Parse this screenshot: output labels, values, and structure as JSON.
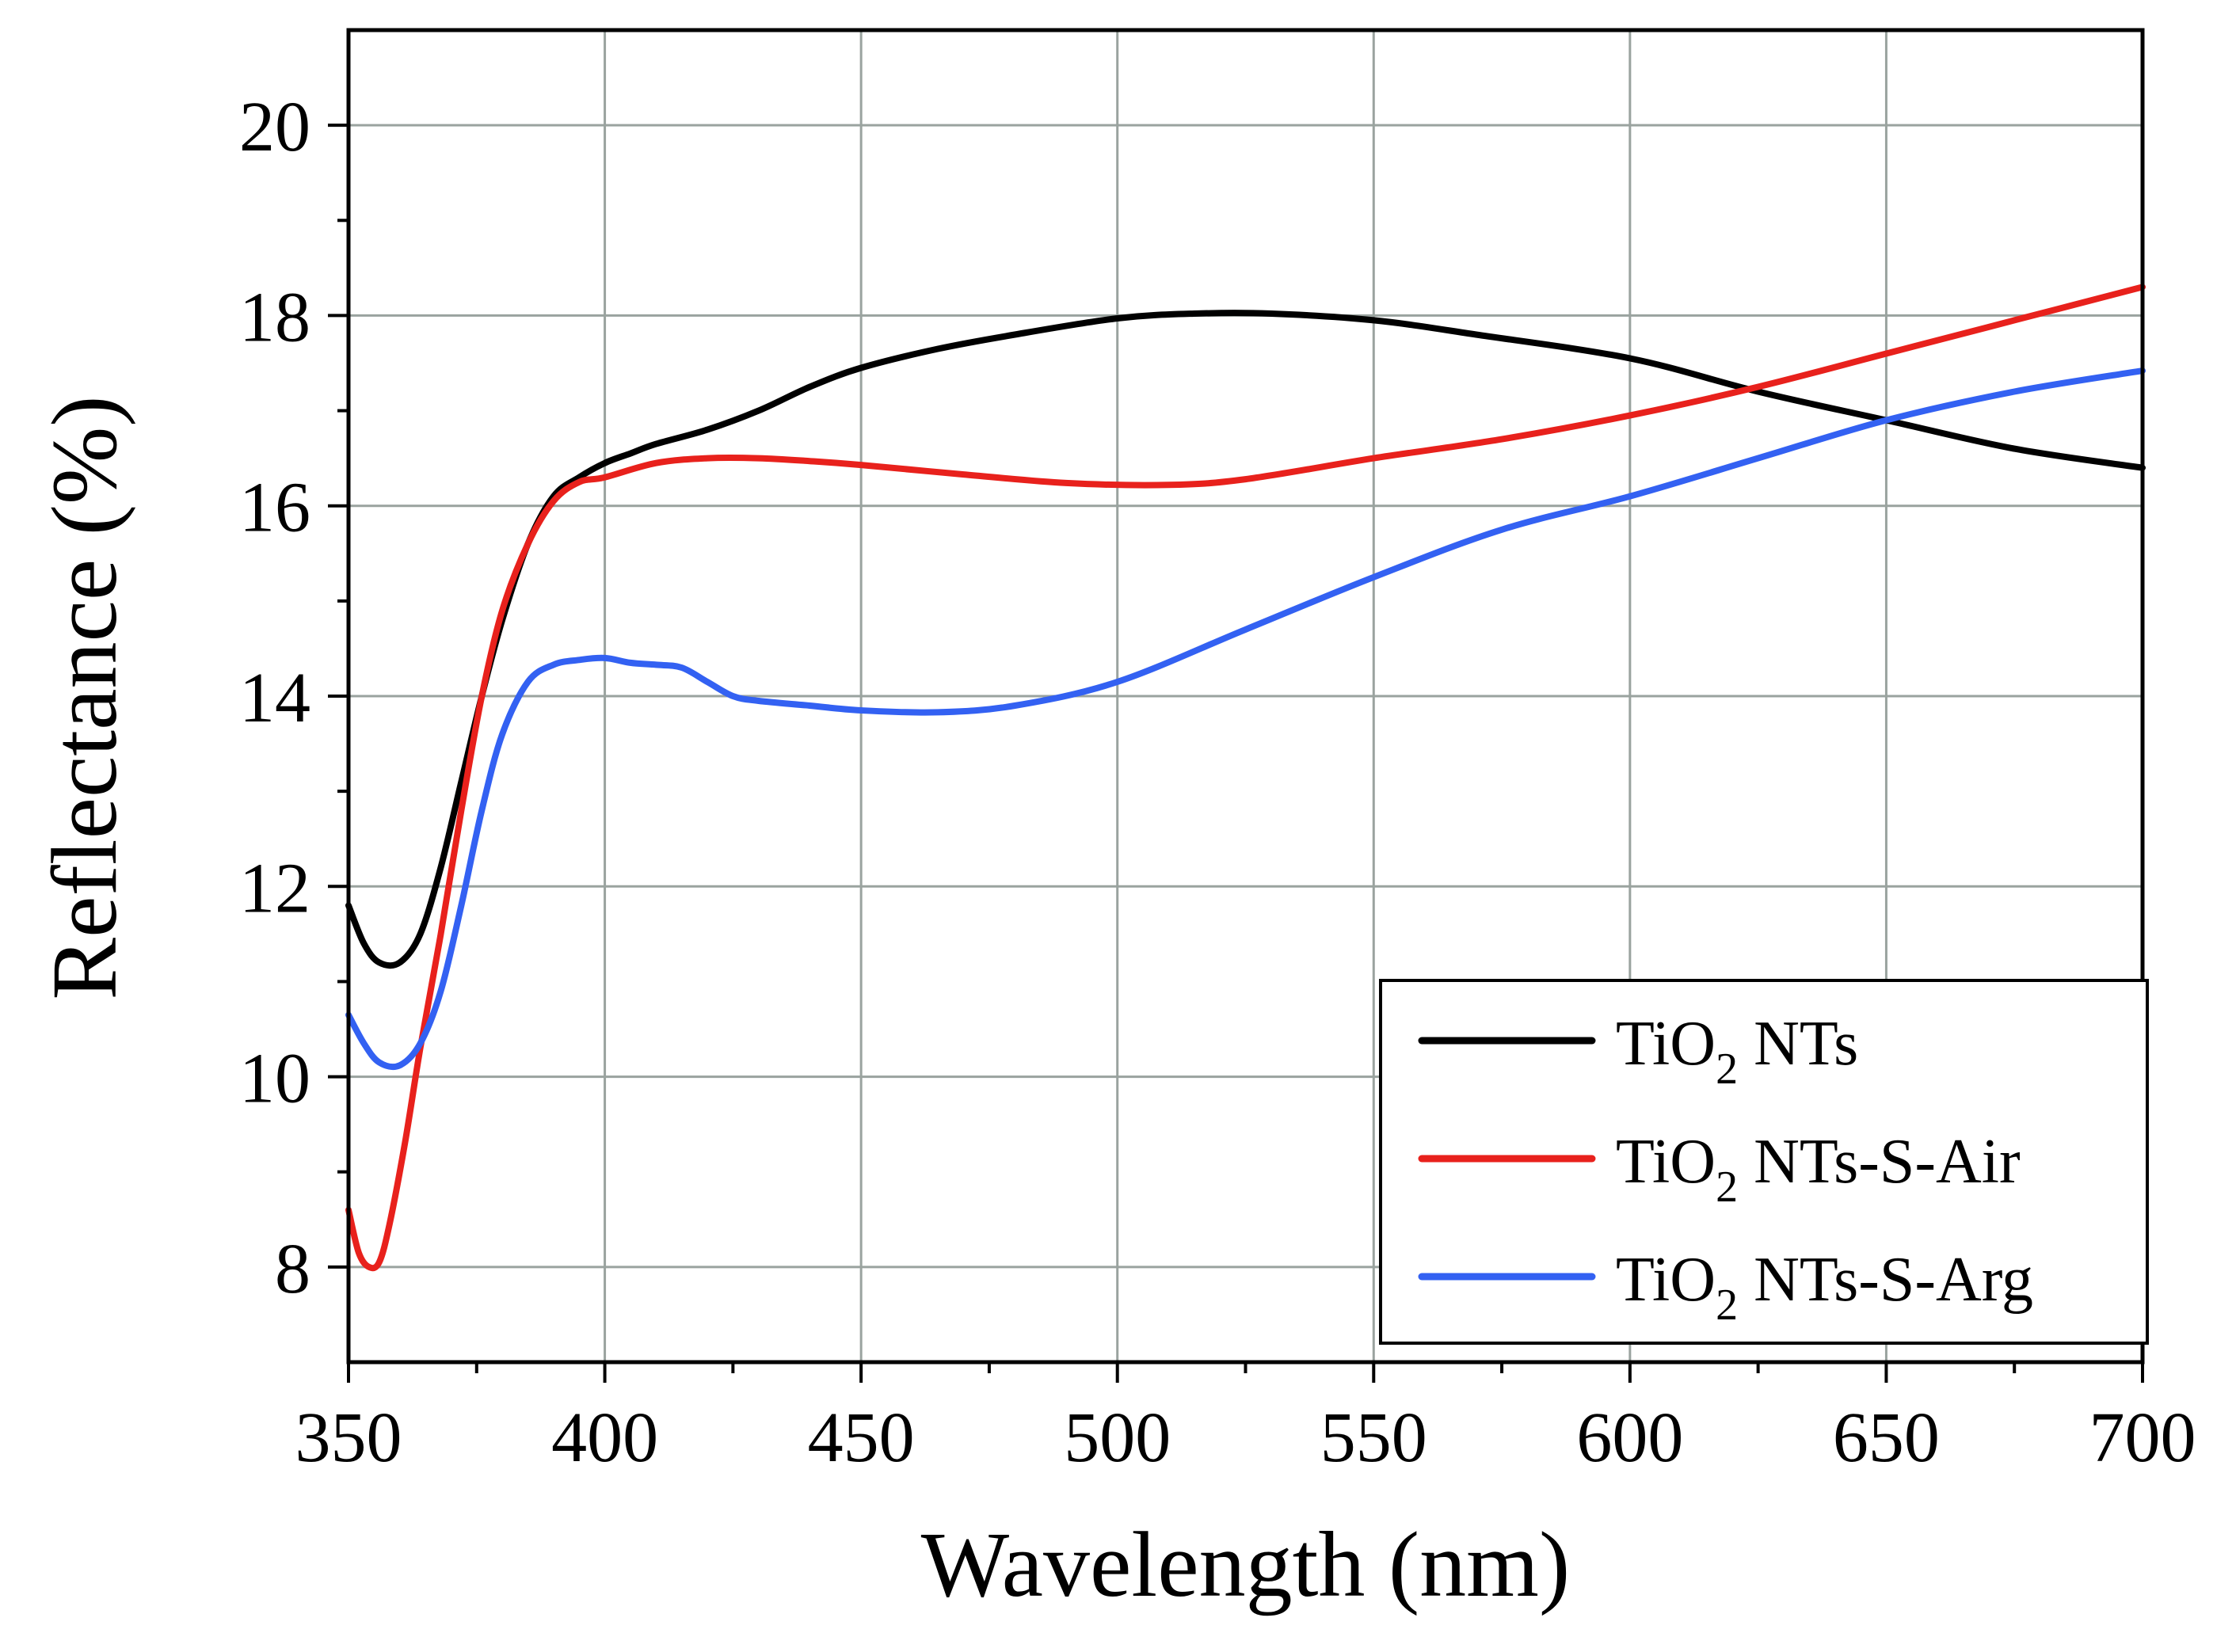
{
  "chart_data": {
    "type": "line",
    "title": "",
    "xlabel": "Wavelength (nm)",
    "ylabel": "Reflectance (%)",
    "xlim": [
      350,
      700
    ],
    "ylim": [
      7,
      21
    ],
    "x_ticks": [
      350,
      400,
      450,
      500,
      550,
      600,
      650,
      700
    ],
    "y_ticks": [
      8,
      10,
      12,
      14,
      16,
      18,
      20
    ],
    "x_ticks_labels": [
      "350",
      "400",
      "450",
      "500",
      "550",
      "600",
      "650",
      "700"
    ],
    "y_ticks_labels": [
      "8",
      "10",
      "12",
      "14",
      "16",
      "18",
      "20"
    ],
    "x_minor_step": 25,
    "y_minor_step": 1,
    "grid": true,
    "legend": {
      "position": "bottom-right",
      "items": [
        {
          "prefix": "TiO",
          "sub": "2",
          "suffix": " NTs"
        },
        {
          "prefix": "TiO",
          "sub": "2",
          "suffix": " NTs-S-Air"
        },
        {
          "prefix": "TiO",
          "sub": "2",
          "suffix": " NTs-S-Arg"
        }
      ]
    },
    "series": [
      {
        "name": "TiO2 NTs",
        "color": "#000000",
        "x": [
          350,
          353,
          356,
          360,
          364,
          368,
          372,
          376,
          380,
          385,
          390,
          395,
          400,
          405,
          410,
          420,
          430,
          440,
          450,
          465,
          480,
          500,
          515,
          530,
          550,
          570,
          600,
          625,
          650,
          675,
          700
        ],
        "y": [
          11.8,
          11.4,
          11.2,
          11.2,
          11.5,
          12.2,
          13.1,
          14.0,
          14.8,
          15.6,
          16.1,
          16.3,
          16.45,
          16.55,
          16.65,
          16.8,
          17.0,
          17.25,
          17.45,
          17.65,
          17.8,
          17.97,
          18.02,
          18.02,
          17.95,
          17.8,
          17.55,
          17.2,
          16.9,
          16.6,
          16.4
        ]
      },
      {
        "name": "TiO2 NTs-S-Air",
        "color": "#e8211c",
        "x": [
          350,
          352,
          354,
          356,
          358,
          361,
          364,
          368,
          372,
          376,
          380,
          385,
          390,
          395,
          400,
          410,
          420,
          430,
          440,
          450,
          470,
          490,
          510,
          525,
          550,
          575,
          600,
          625,
          650,
          675,
          700
        ],
        "y": [
          8.6,
          8.15,
          8.0,
          8.05,
          8.45,
          9.3,
          10.3,
          11.5,
          12.8,
          14.0,
          14.9,
          15.6,
          16.05,
          16.25,
          16.3,
          16.45,
          16.5,
          16.5,
          16.47,
          16.43,
          16.33,
          16.24,
          16.22,
          16.28,
          16.5,
          16.7,
          16.95,
          17.25,
          17.6,
          17.95,
          18.3
        ]
      },
      {
        "name": "TiO2 NTs-S-Arg",
        "color": "#3361f2",
        "x": [
          350,
          353,
          356,
          360,
          364,
          368,
          372,
          376,
          380,
          385,
          390,
          395,
          400,
          405,
          410,
          415,
          420,
          425,
          430,
          440,
          450,
          465,
          480,
          500,
          525,
          550,
          575,
          600,
          625,
          650,
          675,
          700
        ],
        "y": [
          10.65,
          10.35,
          10.15,
          10.12,
          10.35,
          10.9,
          11.8,
          12.8,
          13.6,
          14.15,
          14.33,
          14.38,
          14.4,
          14.35,
          14.33,
          14.3,
          14.15,
          14.0,
          13.95,
          13.9,
          13.85,
          13.83,
          13.9,
          14.15,
          14.7,
          15.25,
          15.75,
          16.1,
          16.5,
          16.9,
          17.2,
          17.42
        ]
      }
    ]
  }
}
